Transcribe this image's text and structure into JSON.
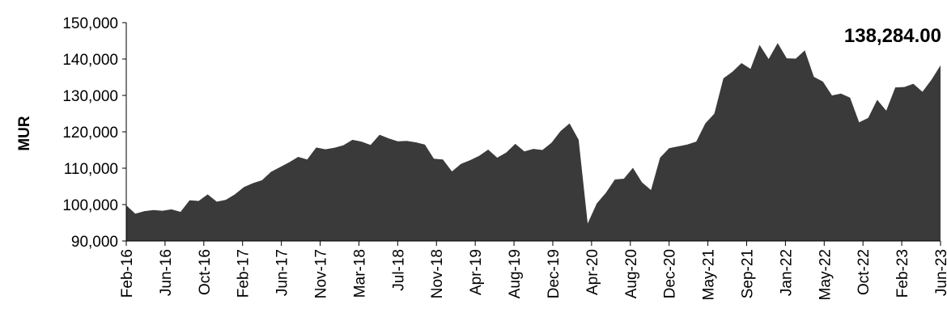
{
  "chart_data": {
    "type": "area",
    "ylabel": "MUR",
    "ylim": [
      90000,
      150000
    ],
    "yticks": [
      90000,
      100000,
      110000,
      120000,
      130000,
      140000,
      150000
    ],
    "ytick_labels": [
      "90,000",
      "100,000",
      "110,000",
      "120,000",
      "130,000",
      "140,000",
      "150,000"
    ],
    "x_tick_labels": [
      "Feb-16",
      "Jun-16",
      "Oct-16",
      "Feb-17",
      "Jun-17",
      "Nov-17",
      "Mar-18",
      "Jul-18",
      "Nov-18",
      "Apr-19",
      "Aug-19",
      "Dec-19",
      "Apr-20",
      "Aug-20",
      "Dec-20",
      "May-21",
      "Sep-21",
      "Jan-22",
      "May-22",
      "Oct-22",
      "Feb-23",
      "Jun-23"
    ],
    "last_value_label": "138,284.00",
    "area_color": "#3a3a3a",
    "series": [
      {
        "values": [
          99800,
          97500,
          98200,
          98500,
          98300,
          98700,
          98000,
          101200,
          101000,
          102800,
          100800,
          101300,
          102800,
          104800,
          105900,
          106700,
          109000,
          110300,
          111600,
          113100,
          112400,
          115700,
          115200,
          115600,
          116300,
          117800,
          117300,
          116400,
          119200,
          118200,
          117400,
          117500,
          117100,
          116500,
          112600,
          112400,
          109100,
          111200,
          112200,
          113400,
          115100,
          112900,
          114300,
          116700,
          114600,
          115300,
          115000,
          117000,
          120200,
          122300,
          117800,
          94800,
          100300,
          103200,
          106900,
          107100,
          110100,
          106100,
          104000,
          112900,
          115500,
          116000,
          116500,
          117300,
          122300,
          125000,
          134700,
          136500,
          138900,
          137300,
          143900,
          140000,
          144400,
          140200,
          140100,
          142400,
          135100,
          133800,
          130000,
          130500,
          129400,
          122600,
          123800,
          128800,
          125800,
          132200,
          132300,
          133200,
          131000,
          134300,
          138284
        ]
      }
    ]
  }
}
